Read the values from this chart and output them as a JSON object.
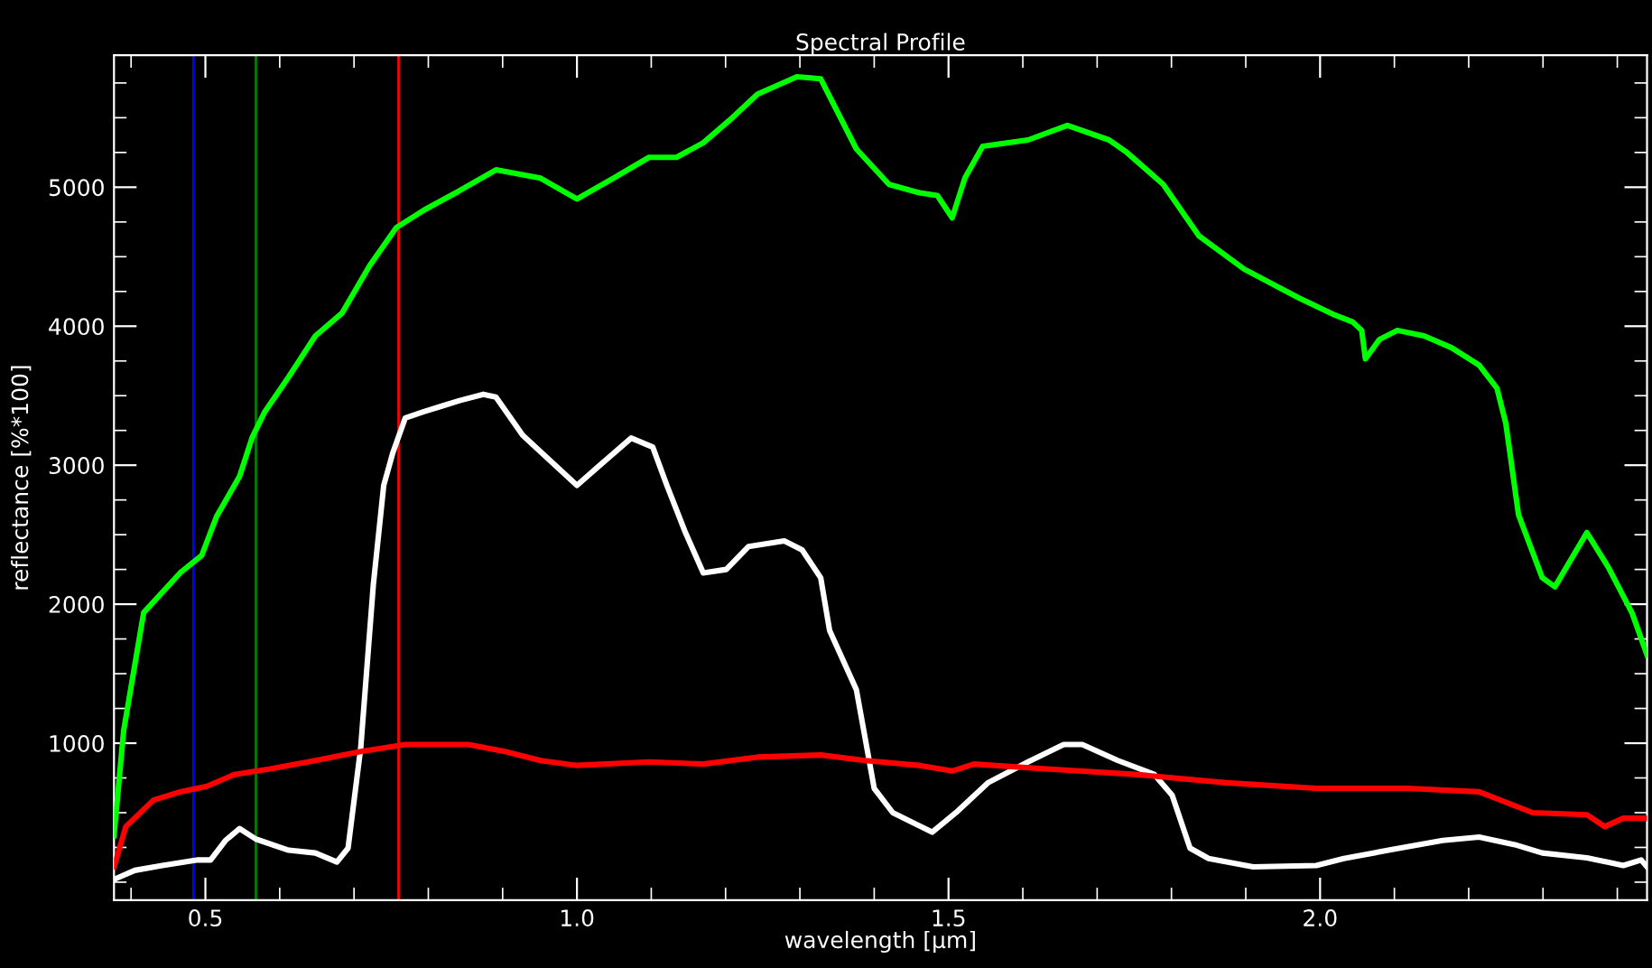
{
  "chart_data": {
    "type": "line",
    "title": "Spectral Profile",
    "xlabel": "wavelength [µm]",
    "ylabel": "reflectance [%*100]",
    "xlim": [
      0.377,
      2.44
    ],
    "ylim": [
      -130,
      5950
    ],
    "xticks": [
      0.5,
      {
        "value": 1,
        "label": "1.0"
      },
      1.5,
      {
        "value": 2,
        "label": "2.0"
      }
    ],
    "yticks": [
      1000,
      2000,
      3000,
      4000,
      5000
    ],
    "grid": false,
    "legend": false,
    "marker": "none",
    "line_style": "solid",
    "ref_lines": [
      {
        "axis": "x",
        "value": 0.484,
        "color": "#0000ff"
      },
      {
        "axis": "x",
        "value": 0.568,
        "color": "#008000"
      },
      {
        "axis": "x",
        "value": 0.76,
        "color": "#ff0000"
      }
    ],
    "series": [
      {
        "color": "#00ff00",
        "x": [
          0.377,
          0.39,
          0.417,
          0.466,
          0.495,
          0.515,
          0.546,
          0.563,
          0.58,
          0.612,
          0.648,
          0.684,
          0.721,
          0.757,
          0.794,
          0.842,
          0.891,
          0.951,
          1.0,
          1.049,
          1.097,
          1.134,
          1.17,
          1.206,
          1.243,
          1.296,
          1.328,
          1.376,
          1.42,
          1.461,
          1.485,
          1.505,
          1.522,
          1.546,
          1.607,
          1.66,
          1.716,
          1.74,
          1.789,
          1.837,
          1.898,
          1.971,
          2.02,
          2.044,
          2.056,
          2.061,
          2.08,
          2.104,
          2.14,
          2.177,
          2.214,
          2.238,
          2.25,
          2.267,
          2.299,
          2.316,
          2.359,
          2.388,
          2.42,
          2.44
        ],
        "values": [
          335,
          1090,
          1940,
          2225,
          2350,
          2630,
          2920,
          3200,
          3385,
          3635,
          3930,
          4095,
          4435,
          4710,
          4835,
          4975,
          5125,
          5065,
          4915,
          5065,
          5215,
          5215,
          5320,
          5485,
          5670,
          5795,
          5780,
          5275,
          5020,
          4960,
          4940,
          4780,
          5065,
          5295,
          5340,
          5445,
          5340,
          5250,
          5020,
          4650,
          4410,
          4205,
          4080,
          4030,
          3970,
          3765,
          3905,
          3970,
          3930,
          3845,
          3720,
          3555,
          3300,
          2645,
          2190,
          2125,
          2515,
          2265,
          1935,
          1635
        ]
      },
      {
        "color": "#ffffff",
        "x": [
          0.377,
          0.405,
          0.442,
          0.49,
          0.507,
          0.527,
          0.546,
          0.568,
          0.612,
          0.648,
          0.677,
          0.692,
          0.709,
          0.726,
          0.74,
          0.752,
          0.769,
          0.794,
          0.818,
          0.842,
          0.874,
          0.891,
          0.927,
          1.0,
          1.032,
          1.073,
          1.102,
          1.121,
          1.146,
          1.17,
          1.201,
          1.231,
          1.279,
          1.303,
          1.328,
          1.34,
          1.376,
          1.4,
          1.425,
          1.478,
          1.51,
          1.553,
          1.607,
          1.655,
          1.68,
          1.728,
          1.777,
          1.801,
          1.825,
          1.85,
          1.91,
          1.995,
          2.032,
          2.092,
          2.165,
          2.214,
          2.262,
          2.299,
          2.359,
          2.408,
          2.432,
          2.44
        ],
        "values": [
          20,
          85,
          120,
          160,
          160,
          300,
          385,
          310,
          230,
          210,
          145,
          245,
          965,
          2140,
          2855,
          3085,
          3340,
          3385,
          3425,
          3465,
          3510,
          3490,
          3215,
          2855,
          3005,
          3195,
          3130,
          2855,
          2515,
          2225,
          2250,
          2415,
          2455,
          2390,
          2190,
          1810,
          1385,
          675,
          500,
          360,
          500,
          715,
          865,
          990,
          990,
          875,
          775,
          625,
          245,
          170,
          110,
          120,
          170,
          230,
          300,
          325,
          270,
          210,
          175,
          120,
          160,
          110
        ]
      },
      {
        "color": "#ff0000",
        "x": [
          0.377,
          0.393,
          0.43,
          0.466,
          0.502,
          0.539,
          0.587,
          0.648,
          0.709,
          0.769,
          0.854,
          0.903,
          0.951,
          1.0,
          1.097,
          1.17,
          1.243,
          1.328,
          1.388,
          1.461,
          1.505,
          1.534,
          1.631,
          1.752,
          1.874,
          1.995,
          2.117,
          2.214,
          2.286,
          2.359,
          2.383,
          2.408,
          2.44
        ],
        "values": [
          110,
          400,
          590,
          650,
          690,
          775,
          815,
          875,
          940,
          990,
          990,
          940,
          875,
          840,
          865,
          850,
          900,
          915,
          875,
          840,
          800,
          850,
          815,
          775,
          715,
          675,
          675,
          650,
          500,
          485,
          400,
          460,
          460
        ]
      }
    ]
  }
}
